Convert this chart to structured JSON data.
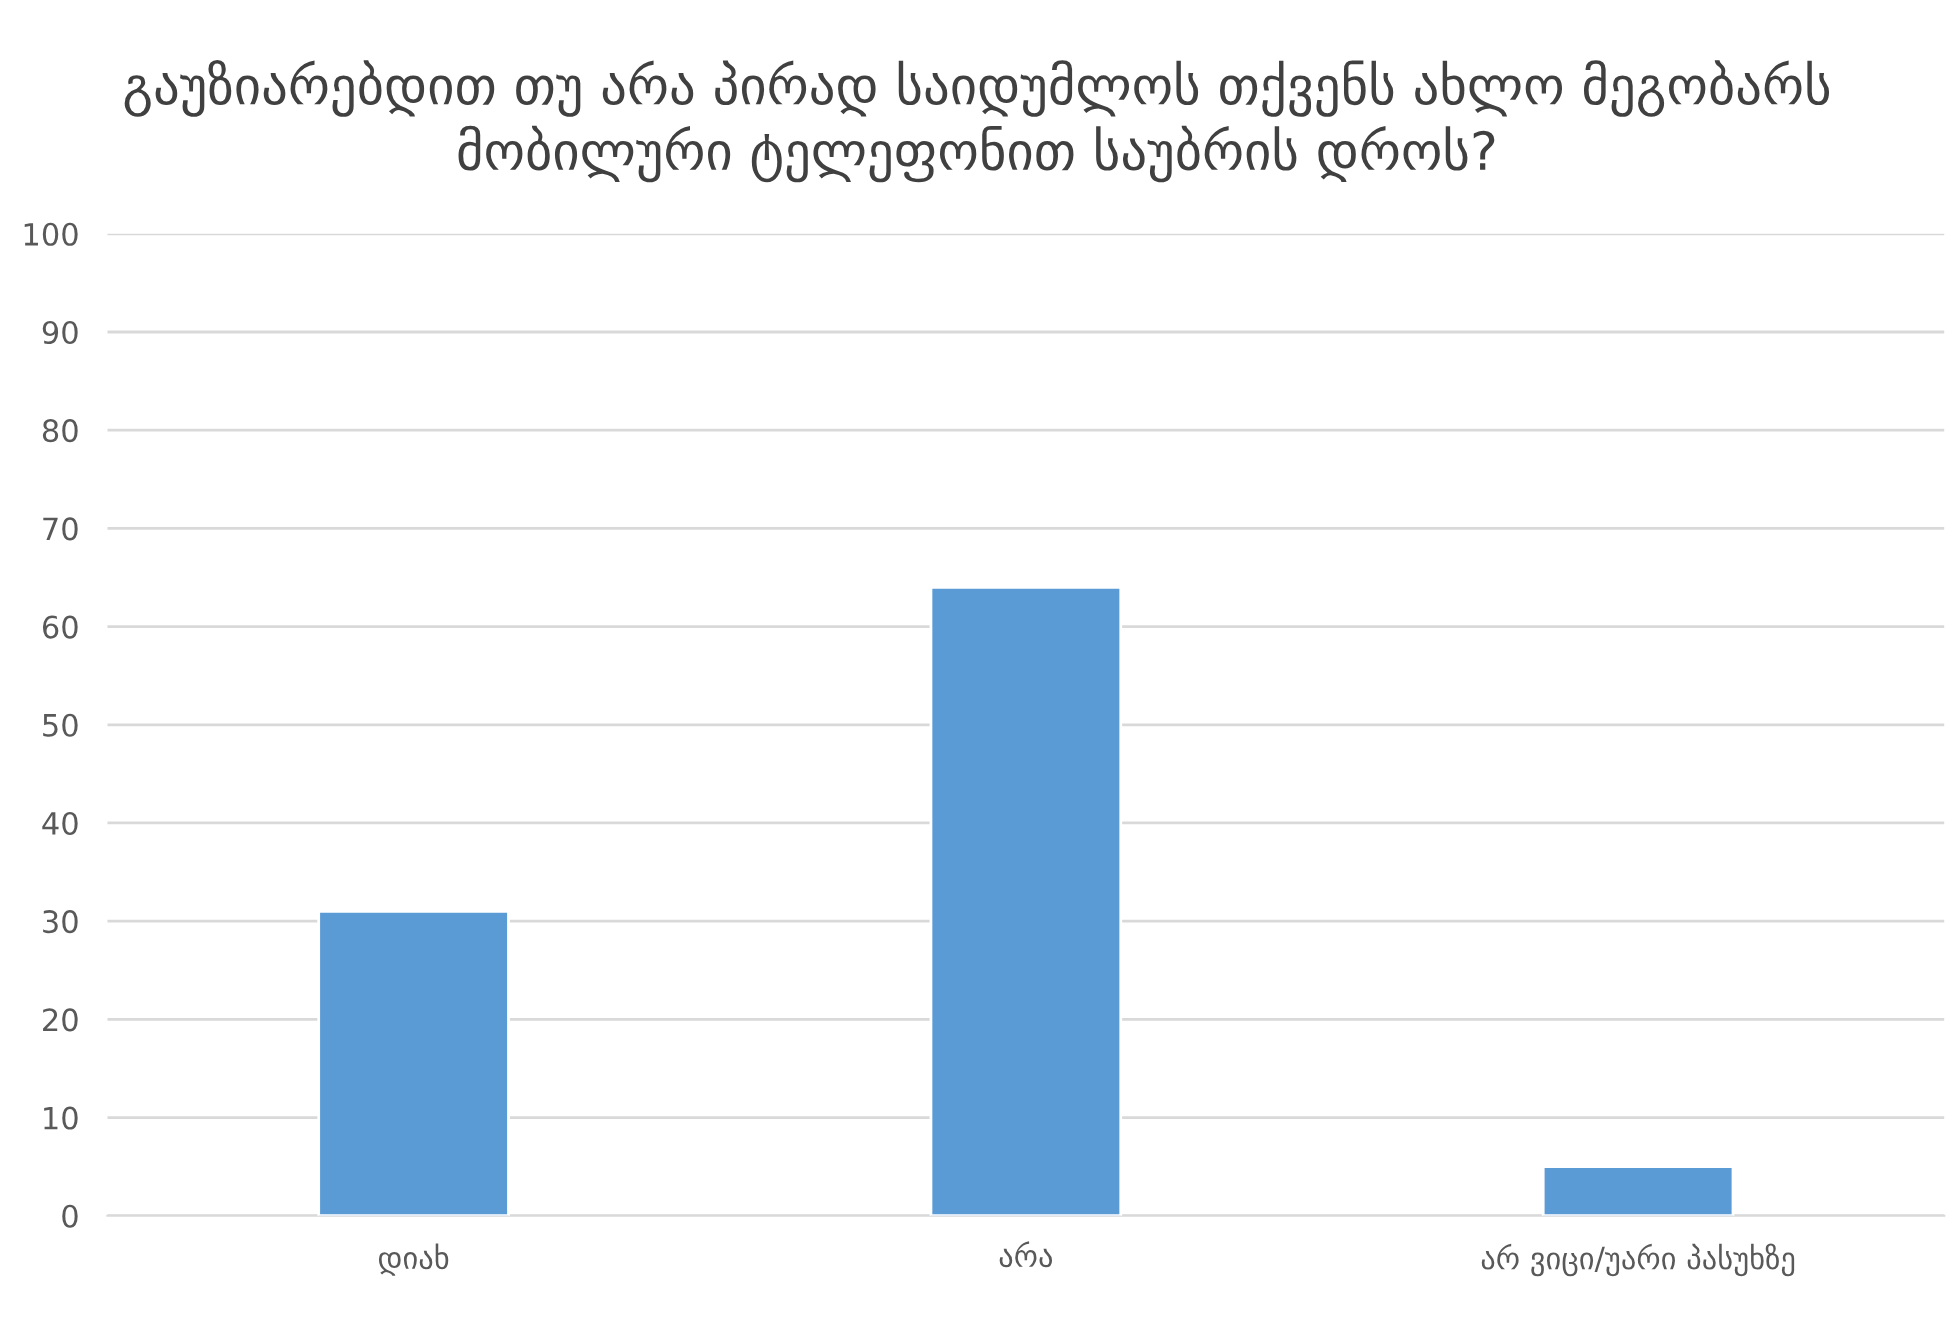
{
  "chart_data": {
    "type": "bar",
    "title": "გაუზიარებდით თუ არა პირად საიდუმლოს თქვენს ახლო მეგობარს მობილური ტელეფონით საუბრის დროს?",
    "categories": [
      "დიახ",
      "არა",
      "არ ვიცი/უარი პასუხზე"
    ],
    "values": [
      31,
      64,
      5
    ],
    "color": "#5b9bd5",
    "ylim": [
      0,
      100
    ],
    "yticks": [
      0,
      10,
      20,
      30,
      40,
      50,
      60,
      70,
      80,
      90,
      100
    ],
    "grid": "y"
  }
}
